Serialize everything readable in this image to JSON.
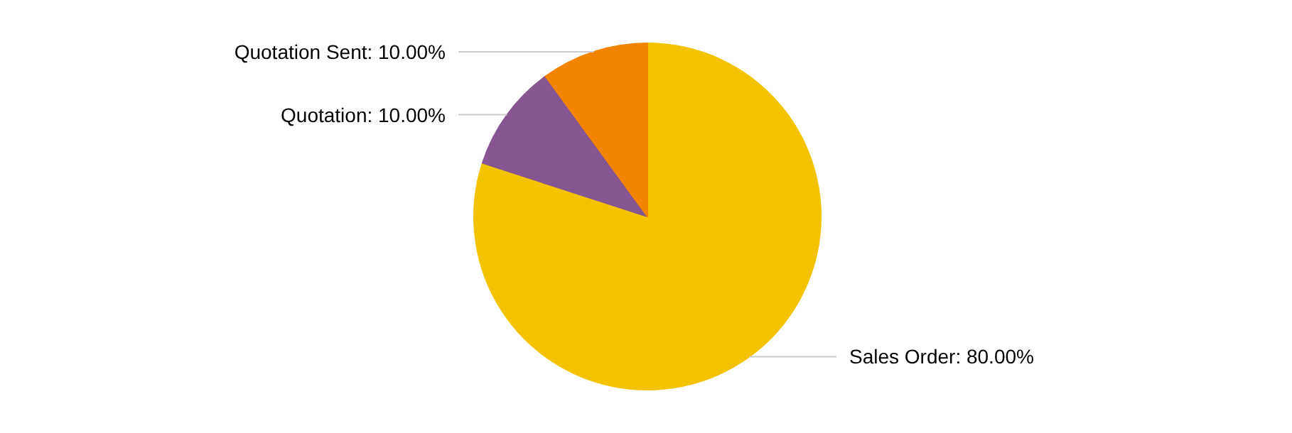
{
  "chart_data": {
    "type": "pie",
    "categories": [
      "Sales Order",
      "Quotation",
      "Quotation Sent"
    ],
    "values": [
      80,
      10,
      10
    ],
    "colors": [
      "#f3c300",
      "#875692",
      "#f38400"
    ],
    "value_labels": [
      "80.00%",
      "10.00%",
      "10.00%"
    ]
  }
}
